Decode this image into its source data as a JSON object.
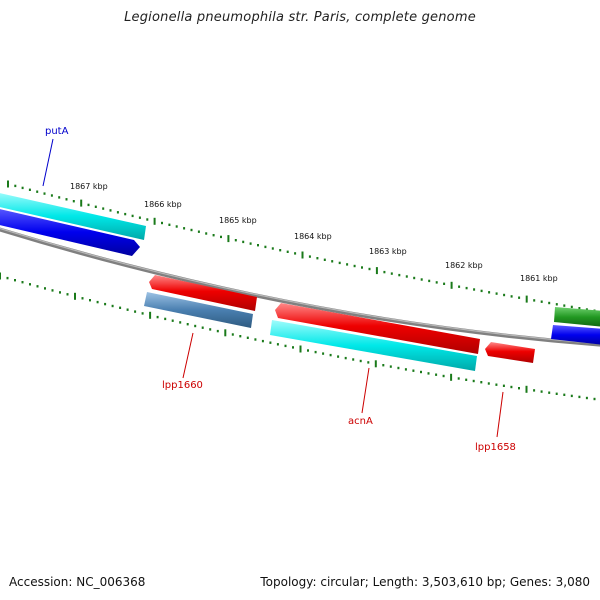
{
  "title": "Legionella pneumophila str. Paris, complete genome",
  "footer": {
    "accession": "Accession: NC_006368",
    "summary": "Topology: circular; Length: 3,503,610 bp; Genes: 3,080"
  },
  "ticks": [
    "1867 kbp",
    "1866 kbp",
    "1865 kbp",
    "1864 kbp",
    "1863 kbp",
    "1862 kbp",
    "1861 kbp"
  ],
  "genes": {
    "putA": "putA",
    "lpp1660": "lpp1660",
    "acnA": "acnA",
    "lpp1658": "lpp1658"
  },
  "colors": {
    "cyan": "#00e5e5",
    "blue": "#0000ee",
    "red": "#ee0000",
    "steel": "#4a7fb0",
    "green": "#229922",
    "tick_green": "#1a7a1a",
    "backbone": "#808080",
    "label_blue": "#0000cc",
    "label_red": "#cc0000"
  }
}
